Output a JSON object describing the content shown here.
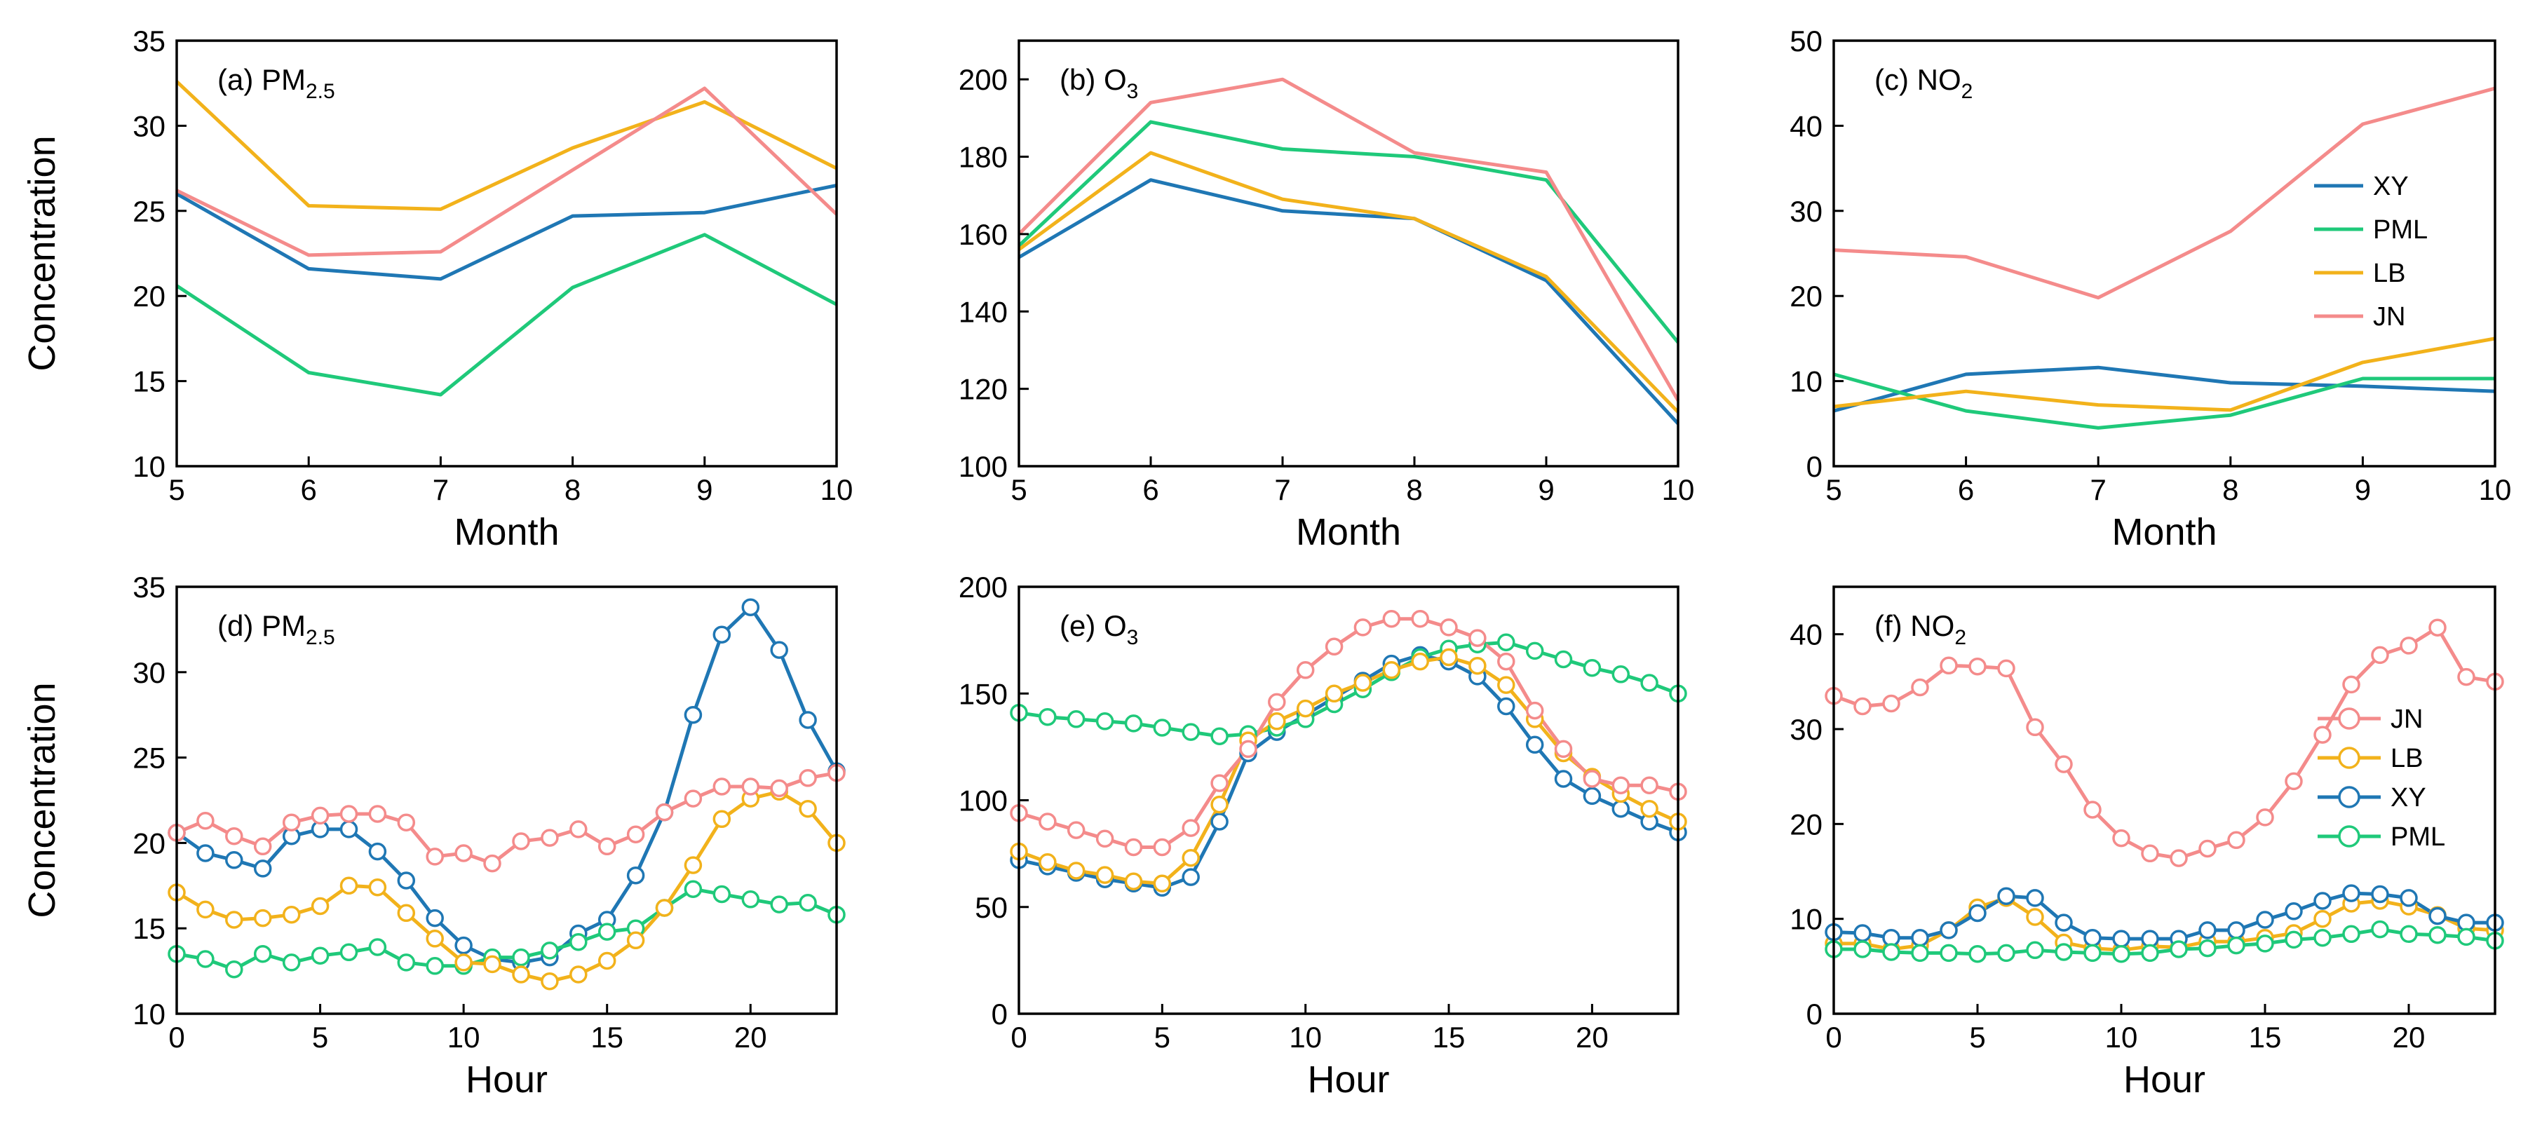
{
  "y_axis_label": "Concentration",
  "chart_data": [
    {
      "panel": "a",
      "type": "line",
      "title": "(a)  PM2.5",
      "title_main": "(a)  PM",
      "title_sub": "2.5",
      "xlabel": "Month",
      "ylabel": "Concentration",
      "xlim": [
        5,
        10
      ],
      "ylim": [
        10,
        35
      ],
      "xticks": [
        5,
        6,
        7,
        8,
        9,
        10
      ],
      "yticks": [
        10,
        15,
        20,
        25,
        30,
        35
      ],
      "markers": false,
      "legend": null,
      "x": [
        5,
        6,
        7,
        8,
        9,
        10
      ],
      "series": [
        {
          "name": "XY",
          "color": "#1f77b4",
          "values": [
            26.0,
            21.6,
            21.0,
            24.7,
            24.9,
            26.5
          ]
        },
        {
          "name": "PML",
          "color": "#1fc97a",
          "values": [
            20.6,
            15.5,
            14.2,
            20.5,
            23.6,
            19.5
          ]
        },
        {
          "name": "LB",
          "color": "#f2b21b",
          "values": [
            32.6,
            25.3,
            25.1,
            28.7,
            31.4,
            27.5
          ]
        },
        {
          "name": "JN",
          "color": "#f48b8b",
          "values": [
            26.2,
            22.4,
            22.6,
            27.4,
            32.2,
            24.8
          ]
        }
      ]
    },
    {
      "panel": "b",
      "type": "line",
      "title": "(b)  O3",
      "title_main": "(b)  O",
      "title_sub": "3",
      "xlabel": "Month",
      "ylabel": "",
      "xlim": [
        5,
        10
      ],
      "ylim": [
        100,
        210
      ],
      "xticks": [
        5,
        6,
        7,
        8,
        9,
        10
      ],
      "yticks": [
        100,
        120,
        140,
        160,
        180,
        200
      ],
      "markers": false,
      "legend": null,
      "x": [
        5,
        6,
        7,
        8,
        9,
        10
      ],
      "series": [
        {
          "name": "XY",
          "color": "#1f77b4",
          "values": [
            154,
            174,
            166,
            164,
            148,
            111
          ]
        },
        {
          "name": "PML",
          "color": "#1fc97a",
          "values": [
            157,
            189,
            182,
            180,
            174,
            132
          ]
        },
        {
          "name": "LB",
          "color": "#f2b21b",
          "values": [
            156,
            181,
            169,
            164,
            149,
            114
          ]
        },
        {
          "name": "JN",
          "color": "#f48b8b",
          "values": [
            160,
            194,
            200,
            181,
            176,
            117
          ]
        }
      ]
    },
    {
      "panel": "c",
      "type": "line",
      "title": "(c)  NO2",
      "title_main": "(c)  NO",
      "title_sub": "2",
      "xlabel": "Month",
      "ylabel": "",
      "xlim": [
        5,
        10
      ],
      "ylim": [
        0,
        50
      ],
      "xticks": [
        5,
        6,
        7,
        8,
        9,
        10
      ],
      "yticks": [
        0,
        10,
        20,
        30,
        40,
        50
      ],
      "markers": false,
      "legend": {
        "position": "right",
        "entries": [
          "XY",
          "PML",
          "LB",
          "JN"
        ]
      },
      "x": [
        5,
        6,
        7,
        8,
        9,
        10
      ],
      "series": [
        {
          "name": "XY",
          "color": "#1f77b4",
          "values": [
            6.5,
            10.8,
            11.6,
            9.8,
            9.4,
            8.8
          ]
        },
        {
          "name": "PML",
          "color": "#1fc97a",
          "values": [
            10.8,
            6.5,
            4.5,
            6.0,
            10.3,
            10.3
          ]
        },
        {
          "name": "LB",
          "color": "#f2b21b",
          "values": [
            7.0,
            8.8,
            7.2,
            6.6,
            12.2,
            15.0
          ]
        },
        {
          "name": "JN",
          "color": "#f48b8b",
          "values": [
            25.4,
            24.6,
            19.8,
            27.6,
            40.2,
            44.4
          ]
        }
      ]
    },
    {
      "panel": "d",
      "type": "line",
      "title": "(d)  PM2.5",
      "title_main": "(d)  PM",
      "title_sub": "2.5",
      "xlabel": "Hour",
      "ylabel": "Concentration",
      "xlim": [
        0,
        23
      ],
      "ylim": [
        10,
        35
      ],
      "xticks": [
        0,
        5,
        10,
        15,
        20
      ],
      "yticks": [
        10,
        15,
        20,
        25,
        30,
        35
      ],
      "markers": true,
      "legend": null,
      "x": [
        0,
        1,
        2,
        3,
        4,
        5,
        6,
        7,
        8,
        9,
        10,
        11,
        12,
        13,
        14,
        15,
        16,
        17,
        18,
        19,
        20,
        21,
        22,
        23
      ],
      "series": [
        {
          "name": "XY",
          "color": "#1f77b4",
          "values": [
            20.6,
            19.4,
            19.0,
            18.5,
            20.4,
            20.8,
            20.8,
            19.5,
            17.8,
            15.6,
            14.0,
            13.2,
            13.0,
            13.3,
            14.7,
            15.5,
            18.1,
            21.8,
            27.5,
            32.2,
            33.8,
            31.3,
            27.2,
            24.2
          ]
        },
        {
          "name": "PML",
          "color": "#1fc97a",
          "values": [
            13.5,
            13.2,
            12.6,
            13.5,
            13.0,
            13.4,
            13.6,
            13.9,
            13.0,
            12.8,
            12.8,
            13.3,
            13.3,
            13.7,
            14.2,
            14.8,
            15.0,
            16.2,
            17.3,
            17.0,
            16.7,
            16.4,
            16.5,
            15.8
          ]
        },
        {
          "name": "LB",
          "color": "#f2b21b",
          "values": [
            17.1,
            16.1,
            15.5,
            15.6,
            15.8,
            16.3,
            17.5,
            17.4,
            15.9,
            14.4,
            13.0,
            12.9,
            12.3,
            11.9,
            12.3,
            13.1,
            14.3,
            16.2,
            18.7,
            21.4,
            22.6,
            23.0,
            22.0,
            20.0
          ]
        },
        {
          "name": "JN",
          "color": "#f48b8b",
          "values": [
            20.6,
            21.3,
            20.4,
            19.8,
            21.2,
            21.6,
            21.7,
            21.7,
            21.2,
            19.2,
            19.4,
            18.8,
            20.1,
            20.3,
            20.8,
            19.8,
            20.5,
            21.8,
            22.6,
            23.3,
            23.3,
            23.2,
            23.8,
            24.1
          ]
        }
      ]
    },
    {
      "panel": "e",
      "type": "line",
      "title": "(e)  O3",
      "title_main": "(e)  O",
      "title_sub": "3",
      "xlabel": "Hour",
      "ylabel": "",
      "xlim": [
        0,
        23
      ],
      "ylim": [
        0,
        200
      ],
      "xticks": [
        0,
        5,
        10,
        15,
        20
      ],
      "yticks": [
        0,
        50,
        100,
        150,
        200
      ],
      "markers": true,
      "legend": null,
      "x": [
        0,
        1,
        2,
        3,
        4,
        5,
        6,
        7,
        8,
        9,
        10,
        11,
        12,
        13,
        14,
        15,
        16,
        17,
        18,
        19,
        20,
        21,
        22,
        23
      ],
      "series": [
        {
          "name": "XY",
          "color": "#1f77b4",
          "values": [
            72,
            69,
            66,
            63,
            61,
            59,
            64,
            90,
            122,
            132,
            140,
            148,
            156,
            164,
            168,
            165,
            158,
            144,
            126,
            110,
            102,
            96,
            90,
            85
          ]
        },
        {
          "name": "PML",
          "color": "#1fc97a",
          "values": [
            141,
            139,
            138,
            137,
            136,
            134,
            132,
            130,
            131,
            134,
            138,
            145,
            152,
            160,
            167,
            171,
            173,
            174,
            170,
            166,
            162,
            159,
            155,
            150
          ]
        },
        {
          "name": "LB",
          "color": "#f2b21b",
          "values": [
            76,
            71,
            67,
            65,
            62,
            61,
            73,
            98,
            128,
            137,
            143,
            150,
            155,
            161,
            165,
            167,
            163,
            154,
            138,
            122,
            111,
            103,
            96,
            90
          ]
        },
        {
          "name": "JN",
          "color": "#f48b8b",
          "values": [
            94,
            90,
            86,
            82,
            78,
            78,
            87,
            108,
            124,
            146,
            161,
            172,
            181,
            185,
            185,
            181,
            176,
            165,
            142,
            124,
            110,
            107,
            107,
            104
          ]
        }
      ]
    },
    {
      "panel": "f",
      "type": "line",
      "title": "(f)  NO2",
      "title_main": "(f)  NO",
      "title_sub": "2",
      "xlabel": "Hour",
      "ylabel": "",
      "xlim": [
        0,
        23
      ],
      "ylim": [
        0,
        45
      ],
      "xticks": [
        0,
        5,
        10,
        15,
        20
      ],
      "yticks": [
        0,
        10,
        20,
        30,
        40
      ],
      "markers": true,
      "legend": {
        "position": "right",
        "entries": [
          "JN",
          "LB",
          "XY",
          "PML"
        ]
      },
      "x": [
        0,
        1,
        2,
        3,
        4,
        5,
        6,
        7,
        8,
        9,
        10,
        11,
        12,
        13,
        14,
        15,
        16,
        17,
        18,
        19,
        20,
        21,
        22,
        23
      ],
      "series": [
        {
          "name": "JN",
          "color": "#f48b8b",
          "values": [
            33.5,
            32.4,
            32.7,
            34.4,
            36.7,
            36.6,
            36.4,
            30.2,
            26.3,
            21.5,
            18.5,
            16.9,
            16.4,
            17.4,
            18.3,
            20.7,
            24.5,
            29.4,
            34.7,
            37.8,
            38.8,
            40.7,
            35.5,
            35.0
          ]
        },
        {
          "name": "LB",
          "color": "#f2b21b",
          "values": [
            7.4,
            7.4,
            6.8,
            7.2,
            8.8,
            11.2,
            12.2,
            10.2,
            7.5,
            6.9,
            6.7,
            7.1,
            7.0,
            7.6,
            7.6,
            8.0,
            8.5,
            10.0,
            11.6,
            11.9,
            11.3,
            10.4,
            9.0,
            8.8
          ]
        },
        {
          "name": "XY",
          "color": "#1f77b4",
          "values": [
            8.6,
            8.5,
            8.0,
            8.0,
            8.8,
            10.6,
            12.4,
            12.2,
            9.6,
            8.0,
            7.9,
            7.9,
            7.9,
            8.8,
            8.8,
            9.9,
            10.8,
            11.9,
            12.7,
            12.6,
            12.2,
            10.3,
            9.6,
            9.6
          ]
        },
        {
          "name": "PML",
          "color": "#1fc97a",
          "values": [
            6.8,
            6.8,
            6.5,
            6.4,
            6.4,
            6.3,
            6.4,
            6.7,
            6.5,
            6.4,
            6.3,
            6.4,
            6.8,
            6.9,
            7.2,
            7.4,
            7.8,
            8.0,
            8.4,
            8.9,
            8.4,
            8.3,
            8.1,
            7.7
          ]
        }
      ]
    }
  ]
}
